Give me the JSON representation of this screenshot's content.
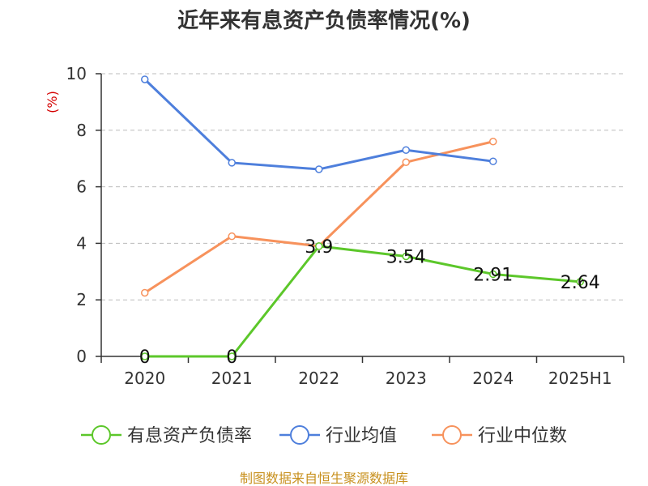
{
  "chart_data": {
    "type": "line",
    "title": "近年来有息资产负债率情况(%)",
    "ylabel": "(%)",
    "categories": [
      "2020",
      "2021",
      "2022",
      "2023",
      "2024",
      "2025H1"
    ],
    "ylim": [
      0,
      10
    ],
    "yticks": [
      0,
      2,
      4,
      6,
      8,
      10
    ],
    "grid": true,
    "legend_position": "bottom",
    "series": [
      {
        "name": "有息资产负债率",
        "color": "#5cc72a",
        "values": [
          0,
          0,
          3.9,
          3.54,
          2.91,
          2.64
        ],
        "labels": [
          "0",
          "0",
          "3.9",
          "3.54",
          "2.91",
          "2.64"
        ]
      },
      {
        "name": "行业均值",
        "color": "#4e7fdc",
        "values": [
          9.8,
          6.85,
          6.62,
          7.3,
          6.9,
          null
        ]
      },
      {
        "name": "行业中位数",
        "color": "#f7925c",
        "values": [
          2.25,
          4.25,
          3.9,
          6.87,
          7.6,
          null
        ]
      }
    ]
  },
  "source": "制图数据来自恒生聚源数据库"
}
